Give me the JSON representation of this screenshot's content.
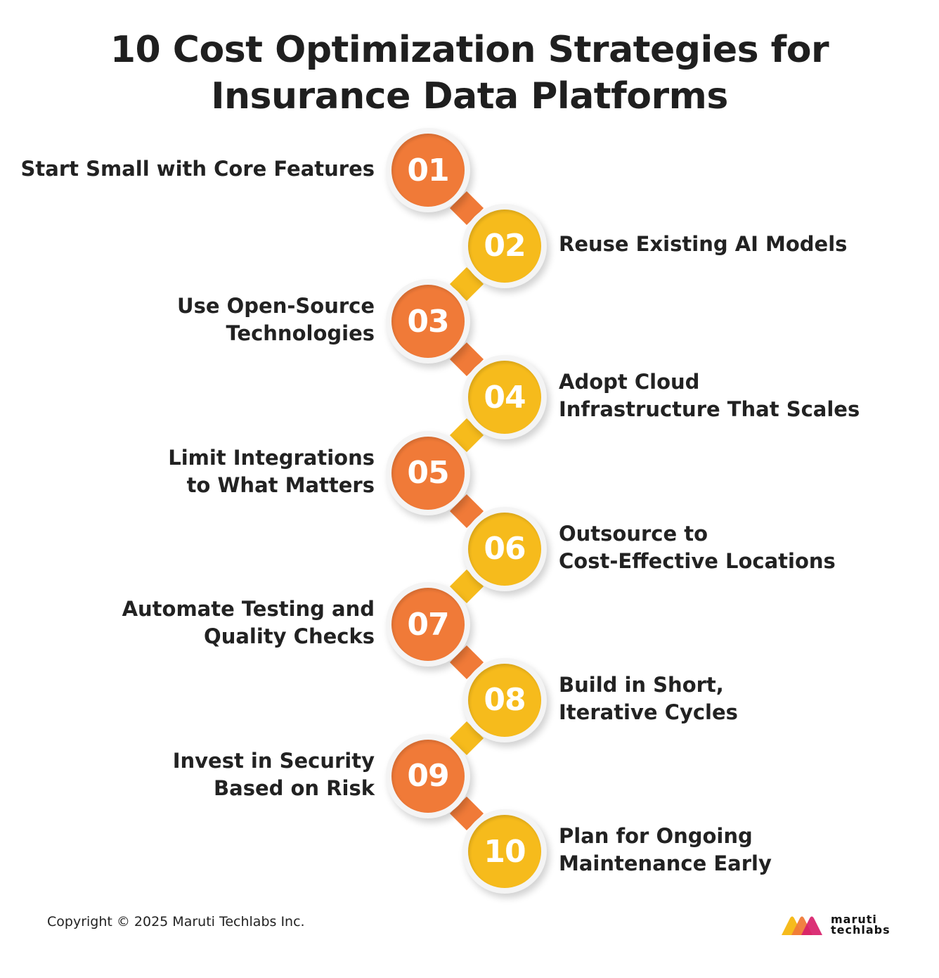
{
  "title": {
    "line1": "10 Cost Optimization Strategies for",
    "line2": "Insurance Data Platforms"
  },
  "colors": {
    "orange": "#F07A38",
    "yellow": "#F6BB1C",
    "ring": "#F4F4F4",
    "text": "#222222"
  },
  "steps": [
    {
      "number": "01",
      "lines": [
        "Start Small with Core Features"
      ]
    },
    {
      "number": "02",
      "lines": [
        "Reuse Existing AI Models"
      ]
    },
    {
      "number": "03",
      "lines": [
        "Use Open-Source",
        "Technologies"
      ]
    },
    {
      "number": "04",
      "lines": [
        "Adopt Cloud",
        "Infrastructure That Scales"
      ]
    },
    {
      "number": "05",
      "lines": [
        "Limit Integrations",
        "to What Matters"
      ]
    },
    {
      "number": "06",
      "lines": [
        "Outsource to",
        "Cost-Effective Locations"
      ]
    },
    {
      "number": "07",
      "lines": [
        "Automate Testing and",
        "Quality Checks"
      ]
    },
    {
      "number": "08",
      "lines": [
        "Build in Short,",
        "Iterative Cycles"
      ]
    },
    {
      "number": "09",
      "lines": [
        "Invest in Security",
        "Based on Risk"
      ]
    },
    {
      "number": "10",
      "lines": [
        "Plan for Ongoing",
        "Maintenance Early"
      ]
    }
  ],
  "footer": {
    "copyright": "Copyright © 2025 Maruti Techlabs Inc.",
    "logo_line1": "maruti",
    "logo_line2": "techlabs"
  }
}
